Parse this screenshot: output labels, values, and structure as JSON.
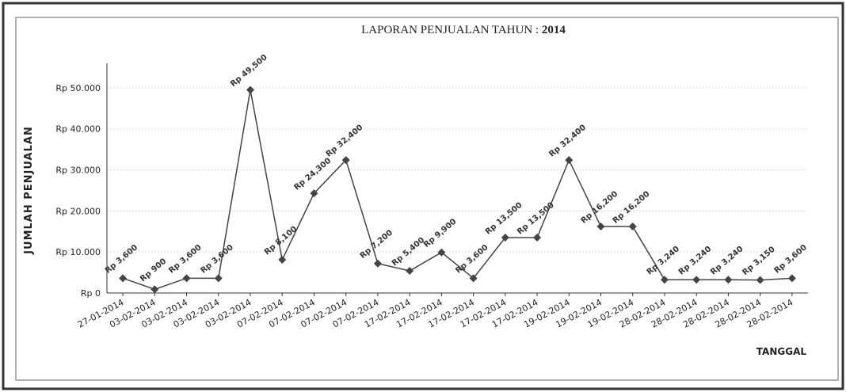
{
  "chart_data": {
    "type": "line",
    "title": "LAPORAN PENJUALAN TAHUN :",
    "title_emphasis": "2014",
    "y_label": "JUMLAH PENJUALAN",
    "x_label": "TANGGAL",
    "categories": [
      "27-01-2014",
      "03-02-2014",
      "03-02-2014",
      "03-02-2014",
      "03-02-2014",
      "07-02-2014",
      "07-02-2014",
      "07-02-2014",
      "07-02-2014",
      "17-02-2014",
      "17-02-2014",
      "17-02-2014",
      "17-02-2014",
      "17-02-2014",
      "19-02-2014",
      "19-02-2014",
      "19-02-2014",
      "28-02-2014",
      "28-02-2014",
      "28-02-2014",
      "28-02-2014",
      "28-02-2014"
    ],
    "values": [
      3600,
      900,
      3600,
      3600,
      49500,
      8100,
      24300,
      32400,
      7200,
      5400,
      9900,
      3600,
      13500,
      13500,
      32400,
      16200,
      16200,
      3240,
      3240,
      3240,
      3150,
      3600
    ],
    "value_labels": [
      "Rp 3,600",
      "Rp 900",
      "Rp 3,600",
      "Rp 3,600",
      "Rp 49,500",
      "Rp 8,100",
      "Rp 24,300",
      "Rp 32,400",
      "Rp 7,200",
      "Rp 5,400",
      "Rp 9,900",
      "Rp 3,600",
      "Rp 13,500",
      "Rp 13,500",
      "Rp 32,400",
      "Rp 16,200",
      "Rp 16,200",
      "Rp 3,240",
      "Rp 3,240",
      "Rp 3,240",
      "Rp 3,150",
      "Rp 3,600"
    ],
    "color": "#444444",
    "ylim": [
      0,
      55000
    ],
    "yticks": [
      {
        "value": 0,
        "label": "Rp 0"
      },
      {
        "value": 10000,
        "label": "Rp 10.000"
      },
      {
        "value": 20000,
        "label": "Rp 20.000"
      },
      {
        "value": 30000,
        "label": "Rp 30.000"
      },
      {
        "value": 40000,
        "label": "Rp 40.000"
      },
      {
        "value": 50000,
        "label": "Rp 50.000"
      }
    ],
    "grid": true
  }
}
